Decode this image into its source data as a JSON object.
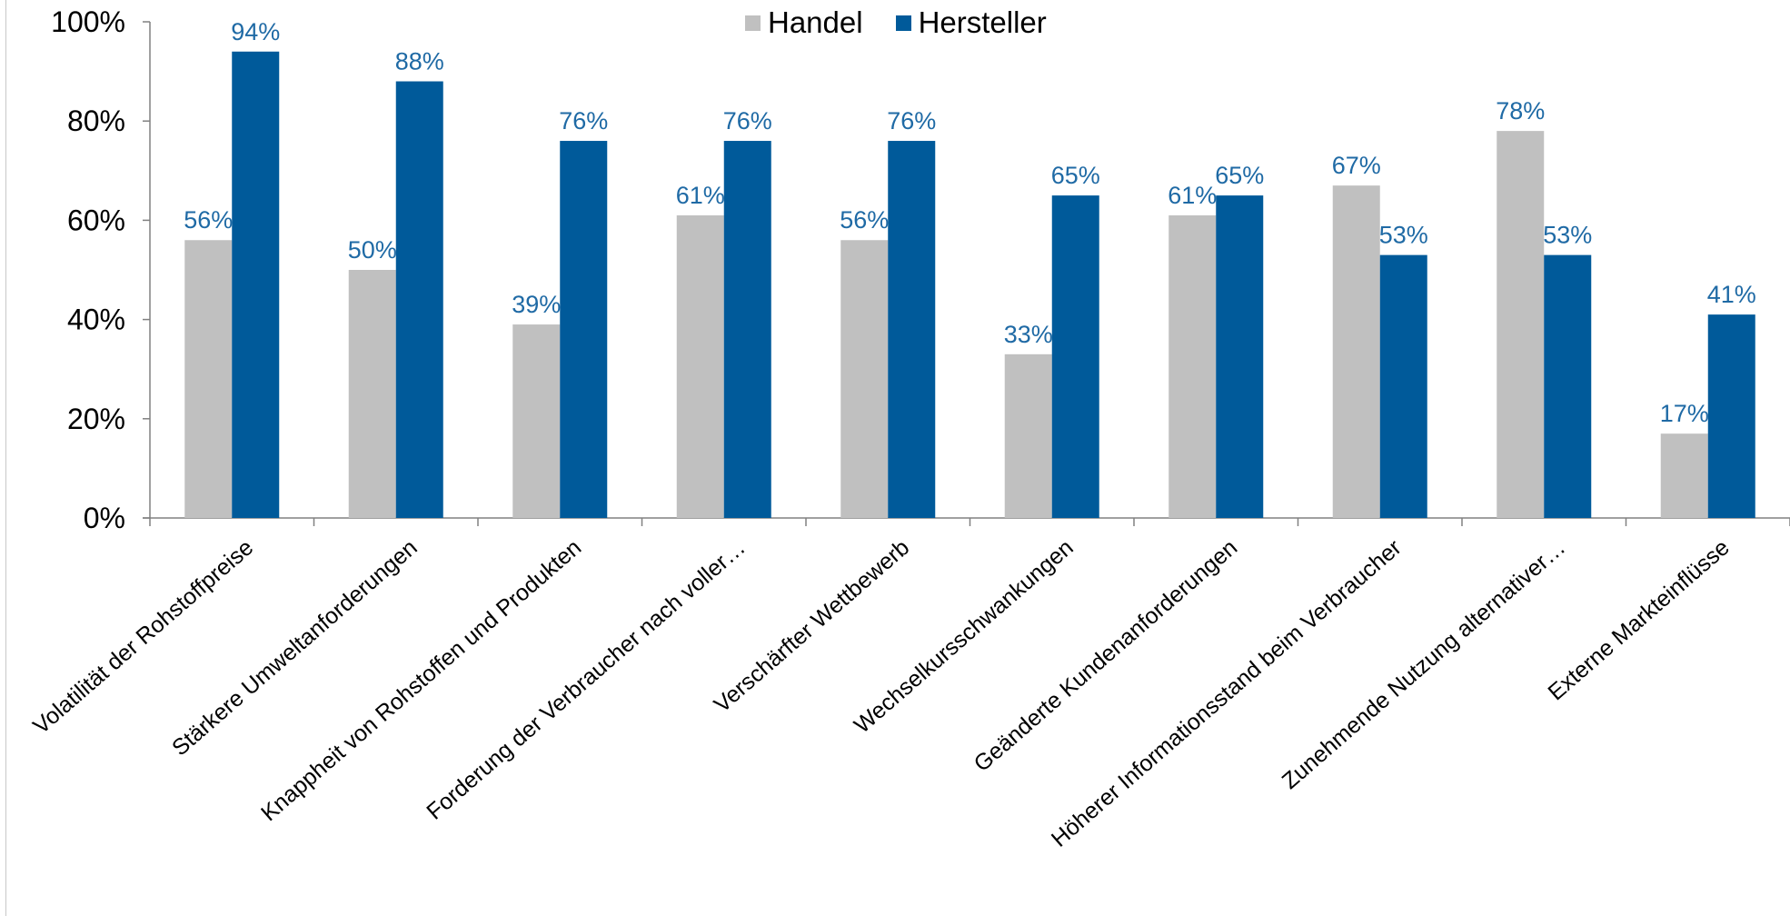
{
  "chart_data": {
    "type": "bar",
    "categories": [
      "Volatilität der Rohstoffpreise",
      "Stärkere Umweltanforderungen",
      "Knappheit von Rohstoffen und Produkten",
      "Forderung der Verbraucher nach voller…",
      "Verschärfter Wettbewerb",
      "Wechselkursschwankungen",
      "Geänderte Kundenanforderungen",
      "Höherer Informationsstand beim Verbraucher",
      "Zunehmende Nutzung alternativer…",
      "Externe Markteinflüsse"
    ],
    "series": [
      {
        "name": "Handel",
        "color": "#c0c0c0",
        "values": [
          56,
          50,
          39,
          61,
          56,
          33,
          61,
          67,
          78,
          17
        ],
        "labels": [
          "56%",
          "50%",
          "39%",
          "61%",
          "56%",
          "33%",
          "61%",
          "67%",
          "78%",
          "17%"
        ]
      },
      {
        "name": "Hersteller",
        "color": "#005a9a",
        "values": [
          94,
          88,
          76,
          76,
          76,
          65,
          65,
          53,
          53,
          41
        ],
        "labels": [
          "94%",
          "88%",
          "76%",
          "76%",
          "76%",
          "65%",
          "65%",
          "53%",
          "53%",
          "41%"
        ]
      }
    ],
    "yticks": [
      "0%",
      "20%",
      "40%",
      "60%",
      "80%",
      "100%"
    ],
    "ylim": [
      0,
      100
    ],
    "title": "",
    "xlabel": "",
    "ylabel": "",
    "grid": false,
    "legend": "top-center",
    "label_color": "#1f6aa5"
  }
}
